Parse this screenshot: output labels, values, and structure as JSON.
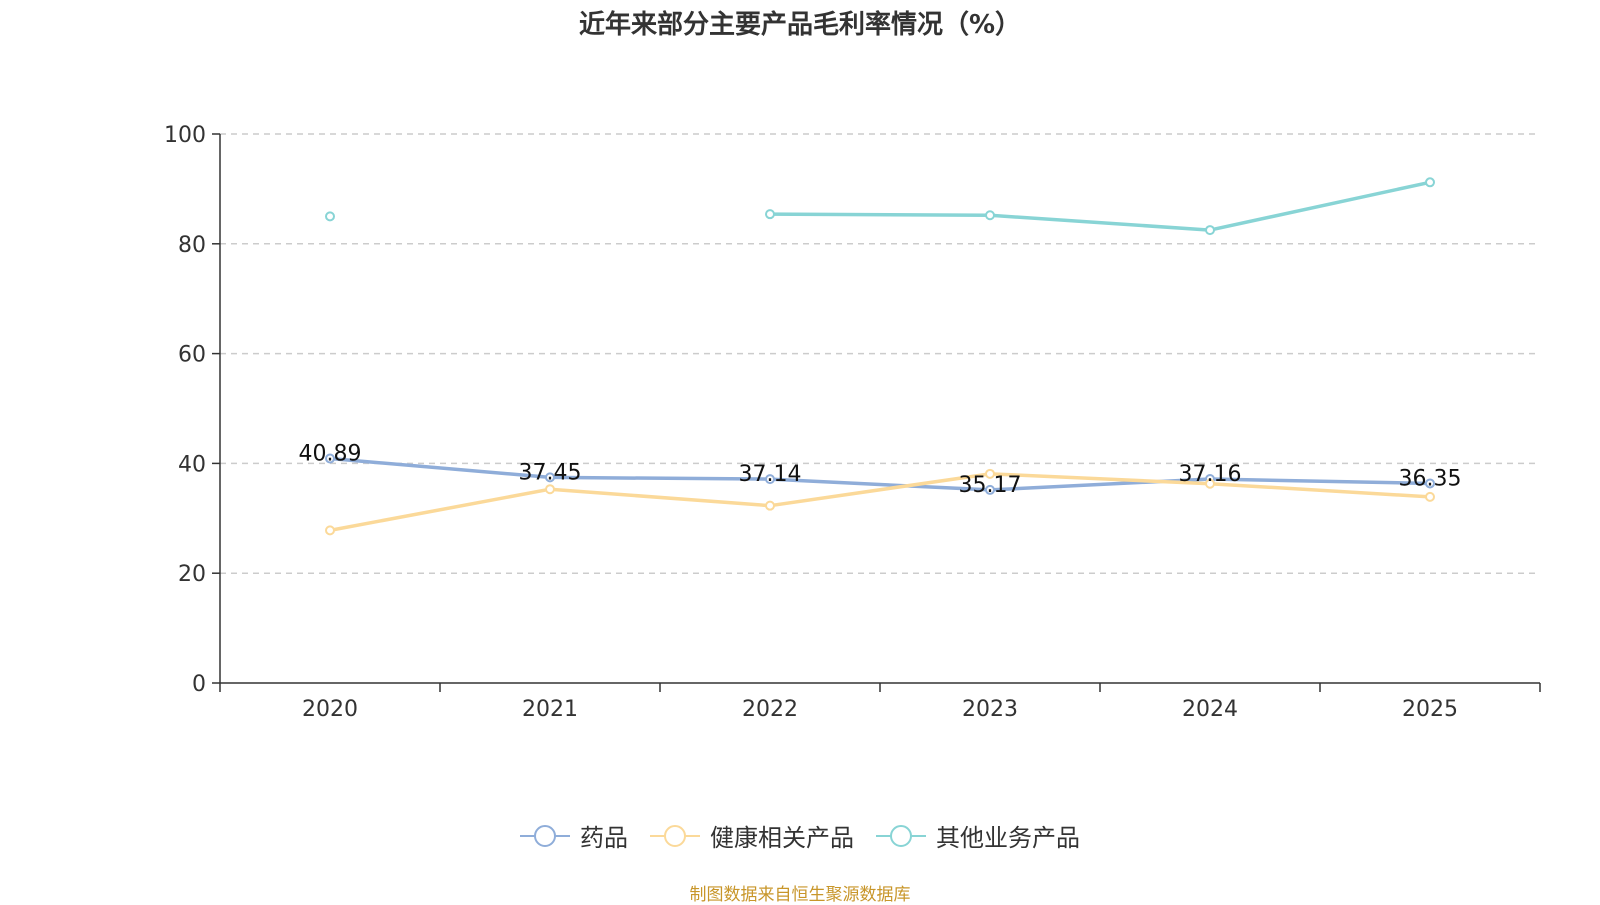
{
  "chart_data": {
    "type": "line",
    "title": "近年来部分主要产品毛利率情况（%）",
    "categories": [
      "2020",
      "2021",
      "2022",
      "2023",
      "2024",
      "2025"
    ],
    "ylim": [
      0,
      100
    ],
    "yticks": [
      0,
      20,
      40,
      60,
      80,
      100
    ],
    "grid": true,
    "legend_position": "bottom",
    "series": [
      {
        "name": "药品",
        "color": "#8fadd9",
        "values": [
          40.89,
          37.45,
          37.14,
          35.17,
          37.16,
          36.35
        ],
        "labels": [
          "40.89",
          "37.45",
          "37.14",
          "35.17",
          "37.16",
          "36.35"
        ]
      },
      {
        "name": "健康相关产品",
        "color": "#fbd999",
        "values": [
          27.8,
          35.3,
          32.3,
          38.1,
          36.3,
          33.9
        ]
      },
      {
        "name": "其他业务产品",
        "color": "#88d4d5",
        "values": [
          85.0,
          null,
          85.4,
          85.2,
          82.5,
          91.2
        ]
      }
    ]
  },
  "source": "制图数据来自恒生聚源数据库"
}
